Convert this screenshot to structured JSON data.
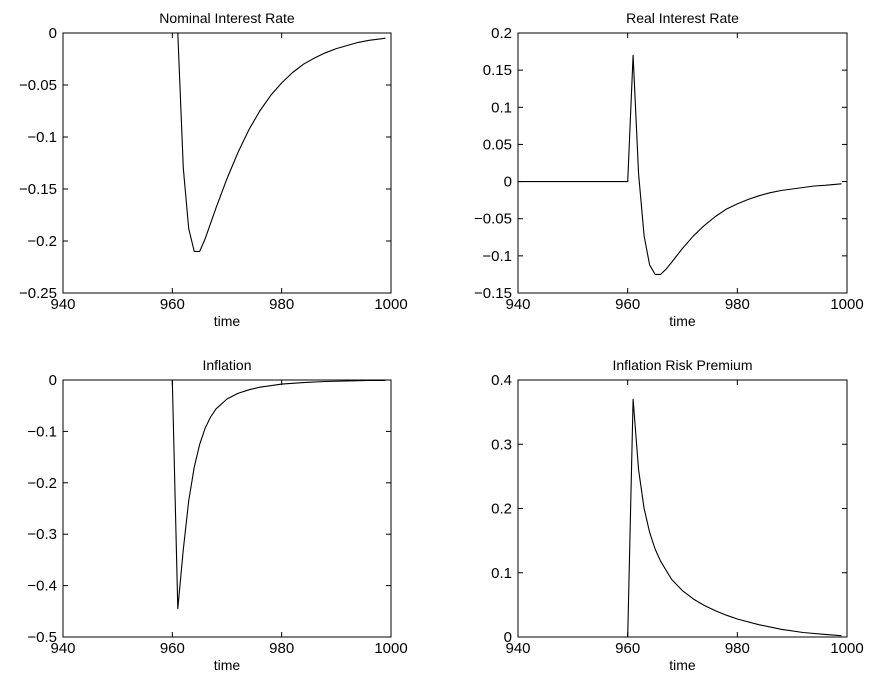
{
  "chart_data": [
    {
      "type": "line",
      "title": "Nominal Interest Rate",
      "xlabel": "time",
      "ylabel": "",
      "xlim": [
        940,
        1000
      ],
      "ylim": [
        -0.25,
        0
      ],
      "xticks": [
        "940",
        "960",
        "980",
        "1000"
      ],
      "yticks": [
        "0",
        "−0.05",
        "−0.1",
        "−0.15",
        "−0.2",
        "−0.25"
      ],
      "grid": false,
      "x": [
        961,
        962,
        963,
        964,
        965,
        966,
        968,
        970,
        972,
        974,
        976,
        978,
        980,
        982,
        984,
        986,
        988,
        990,
        992,
        994,
        996,
        999
      ],
      "y": [
        0,
        -0.13,
        -0.188,
        -0.21,
        -0.21,
        -0.198,
        -0.168,
        -0.14,
        -0.115,
        -0.093,
        -0.075,
        -0.06,
        -0.048,
        -0.038,
        -0.03,
        -0.024,
        -0.019,
        -0.015,
        -0.012,
        -0.009,
        -0.007,
        -0.005
      ]
    },
    {
      "type": "line",
      "title": "Real Interest Rate",
      "xlabel": "time",
      "ylabel": "",
      "xlim": [
        940,
        1000
      ],
      "ylim": [
        -0.15,
        0.2
      ],
      "xticks": [
        "940",
        "960",
        "980",
        "1000"
      ],
      "yticks": [
        "0.2",
        "0.15",
        "0.1",
        "0.05",
        "0",
        "−0.05",
        "−0.1",
        "−0.15"
      ],
      "grid": false,
      "x": [
        940,
        960,
        961,
        962,
        963,
        964,
        965,
        966,
        967,
        968,
        970,
        972,
        974,
        976,
        978,
        980,
        982,
        984,
        986,
        988,
        990,
        992,
        994,
        996,
        999
      ],
      "y": [
        0,
        0,
        0.17,
        0.01,
        -0.073,
        -0.112,
        -0.125,
        -0.125,
        -0.118,
        -0.109,
        -0.09,
        -0.073,
        -0.059,
        -0.047,
        -0.037,
        -0.03,
        -0.024,
        -0.019,
        -0.015,
        -0.012,
        -0.01,
        -0.008,
        -0.006,
        -0.005,
        -0.003
      ]
    },
    {
      "type": "line",
      "title": "Inflation",
      "xlabel": "time",
      "ylabel": "",
      "xlim": [
        940,
        1000
      ],
      "ylim": [
        -0.5,
        0
      ],
      "xticks": [
        "940",
        "960",
        "980",
        "1000"
      ],
      "yticks": [
        "0",
        "−0.1",
        "−0.2",
        "−0.3",
        "−0.4",
        "−0.5"
      ],
      "grid": false,
      "x": [
        960,
        961,
        962,
        963,
        964,
        965,
        966,
        967,
        968,
        970,
        972,
        974,
        976,
        978,
        980,
        984,
        988,
        992,
        996,
        999
      ],
      "y": [
        0,
        -0.445,
        -0.33,
        -0.235,
        -0.17,
        -0.125,
        -0.094,
        -0.072,
        -0.056,
        -0.037,
        -0.026,
        -0.019,
        -0.014,
        -0.011,
        -0.008,
        -0.005,
        -0.003,
        -0.002,
        -0.001,
        -0.001
      ]
    },
    {
      "type": "line",
      "title": "Inflation Risk Premium",
      "xlabel": "time",
      "ylabel": "",
      "xlim": [
        940,
        1000
      ],
      "ylim": [
        0,
        0.4
      ],
      "xticks": [
        "940",
        "960",
        "980",
        "1000"
      ],
      "yticks": [
        "0.4",
        "0.3",
        "0.2",
        "0.1",
        "0"
      ],
      "grid": false,
      "x": [
        940,
        960,
        961,
        962,
        963,
        964,
        965,
        966,
        968,
        970,
        972,
        974,
        976,
        978,
        980,
        984,
        988,
        992,
        996,
        999
      ],
      "y": [
        0,
        0,
        0.37,
        0.26,
        0.2,
        0.163,
        0.137,
        0.118,
        0.09,
        0.072,
        0.059,
        0.049,
        0.041,
        0.034,
        0.028,
        0.019,
        0.012,
        0.007,
        0.004,
        0.002
      ]
    }
  ]
}
